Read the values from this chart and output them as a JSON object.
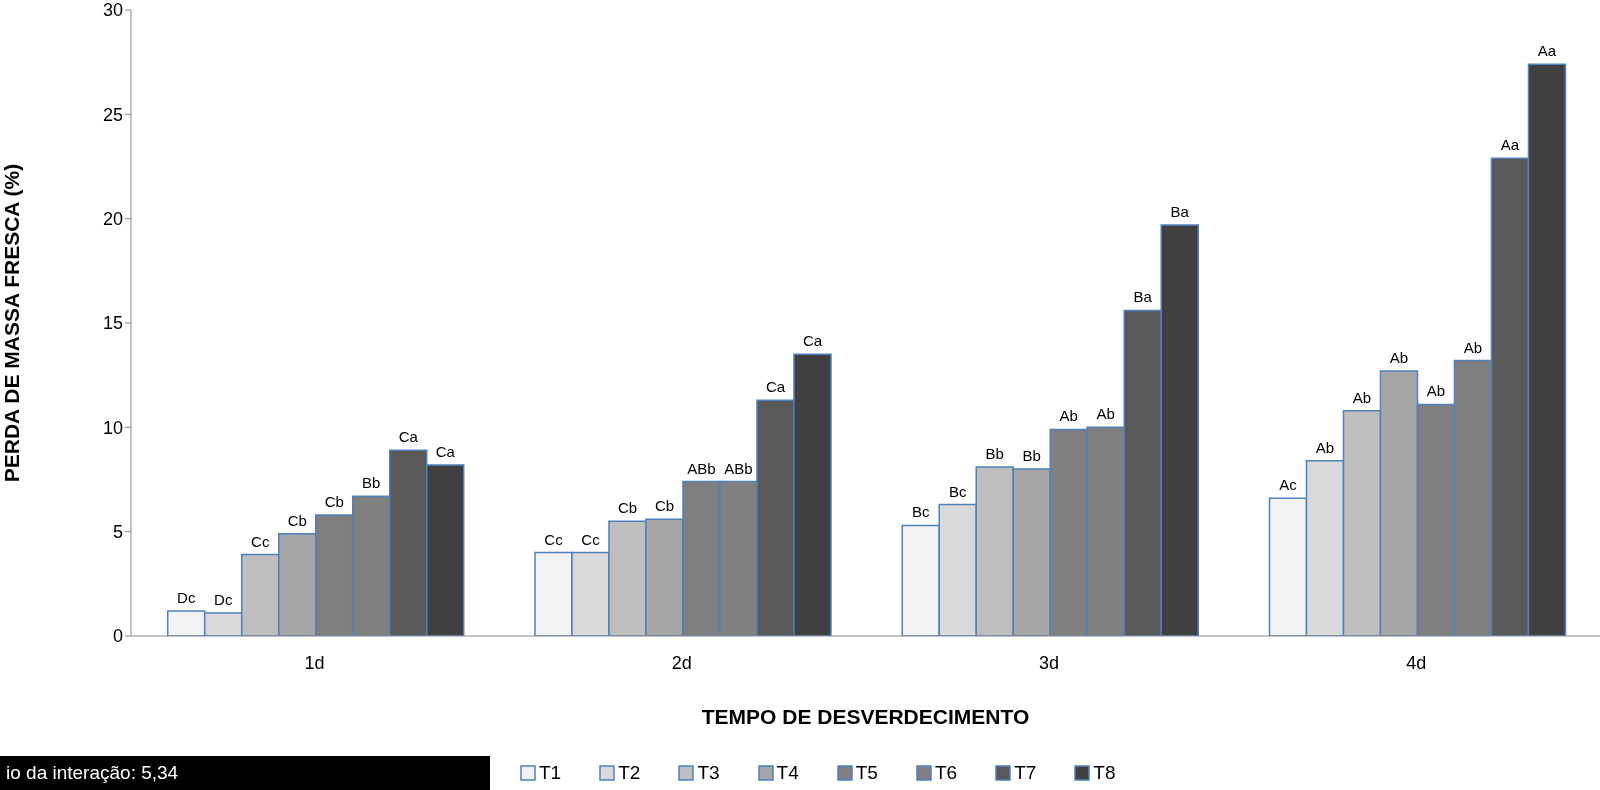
{
  "chart_data": {
    "type": "bar",
    "xlabel": "TEMPO DE DESVERDECIMENTO",
    "ylabel": "PERDA DE MASSA FRESCA (%)",
    "categories": [
      "1d",
      "2d",
      "3d",
      "4d"
    ],
    "ylim": [
      0,
      30
    ],
    "yticks": [
      0,
      5,
      10,
      15,
      20,
      25,
      30
    ],
    "grid": false,
    "legend": "bottom",
    "series": [
      {
        "name": "T1",
        "color": "#f2f2f2",
        "values": [
          1.2,
          4.0,
          5.3,
          6.6
        ],
        "value_labels": [
          "Dc",
          "Cc",
          "Bc",
          "Ac"
        ]
      },
      {
        "name": "T2",
        "color": "#d9d9d9",
        "values": [
          1.1,
          4.0,
          6.3,
          8.4
        ],
        "value_labels": [
          "Dc",
          "Cc",
          "Bc",
          "Ab"
        ]
      },
      {
        "name": "T3",
        "color": "#bfbfbf",
        "values": [
          3.9,
          5.5,
          8.1,
          10.8
        ],
        "value_labels": [
          "Cc",
          "Cb",
          "Bb",
          "Ab"
        ]
      },
      {
        "name": "T4",
        "color": "#a6a6a6",
        "values": [
          4.9,
          5.6,
          8.0,
          12.7
        ],
        "value_labels": [
          "Cb",
          "Cb",
          "Bb",
          "Ab"
        ]
      },
      {
        "name": "T5",
        "color": "#7f7f7f",
        "values": [
          5.8,
          7.4,
          9.9,
          11.1
        ],
        "value_labels": [
          "Cb",
          "ABb",
          "Ab",
          "Ab"
        ]
      },
      {
        "name": "T6",
        "color": "#808080",
        "values": [
          6.7,
          7.4,
          10.0,
          13.2
        ],
        "value_labels": [
          "Bb",
          "ABb",
          "Ab",
          "Ab"
        ]
      },
      {
        "name": "T7",
        "color": "#595959",
        "values": [
          8.9,
          11.3,
          15.6,
          22.9
        ],
        "value_labels": [
          "Ca",
          "Ca",
          "Ba",
          "Aa"
        ]
      },
      {
        "name": "T8",
        "color": "#404040",
        "values": [
          8.2,
          13.5,
          19.7,
          27.4
        ],
        "value_labels": [
          "Ca",
          "Ca",
          "Ba",
          "Aa"
        ]
      }
    ],
    "annotations": [
      "io da interação: 5,34"
    ]
  }
}
